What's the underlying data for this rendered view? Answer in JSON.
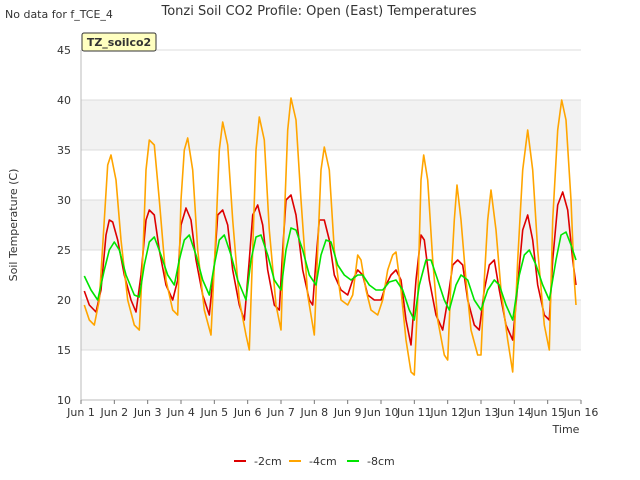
{
  "header": {
    "no_data_note": "No data for f_TCE_4"
  },
  "chart_data": {
    "type": "line",
    "title": "Tonzi Soil CO2 Profile: Open (East) Temperatures",
    "xlabel": "Time",
    "ylabel": "Soil Temperature (C)",
    "station_label": "TZ_soilco2",
    "xlim": [
      1,
      16
    ],
    "ylim": [
      10,
      45
    ],
    "x_ticks": [
      {
        "value": 1,
        "label": "Jun 1"
      },
      {
        "value": 2,
        "label": "Jun 2"
      },
      {
        "value": 3,
        "label": "Jun 3"
      },
      {
        "value": 4,
        "label": "Jun 4"
      },
      {
        "value": 5,
        "label": "Jun 5"
      },
      {
        "value": 6,
        "label": "Jun 6"
      },
      {
        "value": 7,
        "label": "Jun 7"
      },
      {
        "value": 8,
        "label": "Jun 8"
      },
      {
        "value": 9,
        "label": "Jun 9"
      },
      {
        "value": 10,
        "label": "Jun 10"
      },
      {
        "value": 11,
        "label": "Jun 11"
      },
      {
        "value": 12,
        "label": "Jun 12"
      },
      {
        "value": 13,
        "label": "Jun 13"
      },
      {
        "value": 14,
        "label": "Jun 14"
      },
      {
        "value": 15,
        "label": "Jun 15"
      },
      {
        "value": 16,
        "label": "Jun 16"
      }
    ],
    "y_ticks": [
      10,
      15,
      20,
      25,
      30,
      35,
      40,
      45
    ],
    "grid": true,
    "legend_position": "bottom-center",
    "series": [
      {
        "name": "-2cm",
        "color": "#dd0000",
        "points": [
          [
            1.1,
            20.9
          ],
          [
            1.25,
            19.5
          ],
          [
            1.45,
            18.8
          ],
          [
            1.6,
            21.0
          ],
          [
            1.75,
            26.5
          ],
          [
            1.85,
            28.0
          ],
          [
            1.95,
            27.8
          ],
          [
            2.1,
            26.0
          ],
          [
            2.3,
            22.5
          ],
          [
            2.5,
            20.0
          ],
          [
            2.65,
            18.8
          ],
          [
            2.8,
            22.5
          ],
          [
            2.95,
            28.0
          ],
          [
            3.05,
            29.0
          ],
          [
            3.2,
            28.5
          ],
          [
            3.35,
            25.0
          ],
          [
            3.55,
            21.5
          ],
          [
            3.75,
            20.0
          ],
          [
            3.9,
            22.0
          ],
          [
            4.0,
            27.5
          ],
          [
            4.15,
            29.2
          ],
          [
            4.3,
            28.0
          ],
          [
            4.45,
            24.0
          ],
          [
            4.65,
            20.5
          ],
          [
            4.85,
            18.5
          ],
          [
            5.0,
            23.5
          ],
          [
            5.1,
            28.5
          ],
          [
            5.25,
            29.0
          ],
          [
            5.4,
            27.5
          ],
          [
            5.55,
            23.0
          ],
          [
            5.75,
            19.5
          ],
          [
            5.9,
            18.0
          ],
          [
            6.05,
            24.0
          ],
          [
            6.15,
            28.5
          ],
          [
            6.3,
            29.5
          ],
          [
            6.45,
            27.5
          ],
          [
            6.6,
            23.0
          ],
          [
            6.8,
            19.5
          ],
          [
            6.95,
            19.0
          ],
          [
            7.05,
            25.0
          ],
          [
            7.15,
            30.0
          ],
          [
            7.3,
            30.5
          ],
          [
            7.45,
            28.5
          ],
          [
            7.65,
            23.0
          ],
          [
            7.85,
            20.0
          ],
          [
            7.95,
            19.5
          ],
          [
            8.05,
            24.0
          ],
          [
            8.15,
            28.0
          ],
          [
            8.3,
            28.0
          ],
          [
            8.45,
            26.0
          ],
          [
            8.6,
            22.5
          ],
          [
            8.8,
            21.0
          ],
          [
            9.0,
            20.5
          ],
          [
            9.15,
            22.0
          ],
          [
            9.3,
            23.0
          ],
          [
            9.45,
            22.5
          ],
          [
            9.6,
            20.5
          ],
          [
            9.8,
            20.0
          ],
          [
            10.0,
            20.0
          ],
          [
            10.15,
            21.5
          ],
          [
            10.3,
            22.5
          ],
          [
            10.45,
            23.0
          ],
          [
            10.6,
            22.0
          ],
          [
            10.75,
            18.0
          ],
          [
            10.9,
            15.5
          ],
          [
            11.05,
            22.0
          ],
          [
            11.2,
            26.5
          ],
          [
            11.3,
            26.0
          ],
          [
            11.45,
            22.0
          ],
          [
            11.65,
            18.5
          ],
          [
            11.85,
            17.0
          ],
          [
            12.0,
            20.0
          ],
          [
            12.15,
            23.5
          ],
          [
            12.3,
            24.0
          ],
          [
            12.45,
            23.5
          ],
          [
            12.6,
            20.0
          ],
          [
            12.8,
            17.5
          ],
          [
            12.95,
            17.0
          ],
          [
            13.1,
            21.0
          ],
          [
            13.25,
            23.5
          ],
          [
            13.4,
            24.0
          ],
          [
            13.55,
            21.0
          ],
          [
            13.75,
            17.5
          ],
          [
            13.95,
            16.0
          ],
          [
            14.1,
            21.5
          ],
          [
            14.25,
            27.0
          ],
          [
            14.4,
            28.5
          ],
          [
            14.55,
            26.0
          ],
          [
            14.7,
            21.5
          ],
          [
            14.9,
            18.5
          ],
          [
            15.05,
            18.0
          ],
          [
            15.15,
            24.0
          ],
          [
            15.3,
            29.5
          ],
          [
            15.45,
            30.8
          ],
          [
            15.6,
            29.0
          ],
          [
            15.75,
            24.0
          ],
          [
            15.85,
            21.5
          ]
        ]
      },
      {
        "name": "-4cm",
        "color": "#ffa500",
        "points": [
          [
            1.1,
            19.5
          ],
          [
            1.25,
            18.0
          ],
          [
            1.4,
            17.5
          ],
          [
            1.55,
            20.0
          ],
          [
            1.7,
            28.0
          ],
          [
            1.8,
            33.5
          ],
          [
            1.9,
            34.5
          ],
          [
            2.05,
            32.0
          ],
          [
            2.2,
            26.0
          ],
          [
            2.4,
            20.0
          ],
          [
            2.6,
            17.5
          ],
          [
            2.75,
            17.0
          ],
          [
            2.85,
            24.0
          ],
          [
            2.95,
            33.0
          ],
          [
            3.05,
            36.0
          ],
          [
            3.2,
            35.5
          ],
          [
            3.35,
            30.0
          ],
          [
            3.55,
            22.0
          ],
          [
            3.75,
            19.0
          ],
          [
            3.9,
            18.5
          ],
          [
            4.0,
            30.0
          ],
          [
            4.1,
            35.0
          ],
          [
            4.2,
            36.2
          ],
          [
            4.35,
            33.0
          ],
          [
            4.5,
            25.0
          ],
          [
            4.7,
            19.0
          ],
          [
            4.9,
            16.5
          ],
          [
            5.05,
            27.0
          ],
          [
            5.15,
            35.0
          ],
          [
            5.25,
            37.8
          ],
          [
            5.4,
            35.5
          ],
          [
            5.55,
            28.0
          ],
          [
            5.75,
            20.0
          ],
          [
            5.95,
            16.5
          ],
          [
            6.05,
            15.0
          ],
          [
            6.15,
            25.0
          ],
          [
            6.25,
            35.0
          ],
          [
            6.35,
            38.3
          ],
          [
            6.5,
            36.0
          ],
          [
            6.65,
            27.0
          ],
          [
            6.85,
            19.5
          ],
          [
            7.0,
            17.0
          ],
          [
            7.1,
            28.0
          ],
          [
            7.2,
            37.0
          ],
          [
            7.3,
            40.2
          ],
          [
            7.45,
            38.0
          ],
          [
            7.6,
            30.0
          ],
          [
            7.8,
            20.5
          ],
          [
            8.0,
            16.5
          ],
          [
            8.1,
            25.0
          ],
          [
            8.2,
            33.0
          ],
          [
            8.3,
            35.3
          ],
          [
            8.45,
            33.0
          ],
          [
            8.6,
            25.0
          ],
          [
            8.8,
            20.0
          ],
          [
            9.0,
            19.5
          ],
          [
            9.15,
            20.5
          ],
          [
            9.3,
            24.5
          ],
          [
            9.4,
            24.0
          ],
          [
            9.55,
            21.0
          ],
          [
            9.7,
            19.0
          ],
          [
            9.9,
            18.5
          ],
          [
            10.05,
            20.0
          ],
          [
            10.2,
            23.0
          ],
          [
            10.35,
            24.5
          ],
          [
            10.45,
            24.8
          ],
          [
            10.6,
            21.0
          ],
          [
            10.75,
            16.0
          ],
          [
            10.9,
            12.8
          ],
          [
            11.0,
            12.5
          ],
          [
            11.1,
            20.0
          ],
          [
            11.2,
            32.0
          ],
          [
            11.28,
            34.5
          ],
          [
            11.4,
            32.0
          ],
          [
            11.55,
            24.0
          ],
          [
            11.7,
            18.0
          ],
          [
            11.9,
            14.5
          ],
          [
            12.0,
            14.0
          ],
          [
            12.1,
            22.0
          ],
          [
            12.2,
            28.0
          ],
          [
            12.28,
            31.5
          ],
          [
            12.4,
            28.0
          ],
          [
            12.55,
            22.0
          ],
          [
            12.7,
            17.0
          ],
          [
            12.9,
            14.5
          ],
          [
            13.0,
            14.5
          ],
          [
            13.1,
            22.0
          ],
          [
            13.2,
            28.0
          ],
          [
            13.3,
            31.0
          ],
          [
            13.45,
            27.0
          ],
          [
            13.6,
            21.0
          ],
          [
            13.8,
            16.0
          ],
          [
            13.95,
            12.8
          ],
          [
            14.1,
            24.0
          ],
          [
            14.25,
            33.0
          ],
          [
            14.4,
            37.0
          ],
          [
            14.55,
            33.0
          ],
          [
            14.7,
            25.0
          ],
          [
            14.9,
            17.5
          ],
          [
            15.05,
            15.0
          ],
          [
            15.15,
            28.0
          ],
          [
            15.3,
            37.0
          ],
          [
            15.42,
            40.0
          ],
          [
            15.55,
            38.0
          ],
          [
            15.7,
            30.0
          ],
          [
            15.8,
            22.0
          ],
          [
            15.85,
            19.5
          ]
        ]
      },
      {
        "name": "-8cm",
        "color": "#00e400",
        "points": [
          [
            1.1,
            22.4
          ],
          [
            1.3,
            21.0
          ],
          [
            1.5,
            20.0
          ],
          [
            1.7,
            23.0
          ],
          [
            1.85,
            25.0
          ],
          [
            2.0,
            25.8
          ],
          [
            2.15,
            25.0
          ],
          [
            2.35,
            22.5
          ],
          [
            2.6,
            20.5
          ],
          [
            2.75,
            20.3
          ],
          [
            2.9,
            23.5
          ],
          [
            3.05,
            25.8
          ],
          [
            3.2,
            26.3
          ],
          [
            3.4,
            24.5
          ],
          [
            3.6,
            22.5
          ],
          [
            3.8,
            21.5
          ],
          [
            3.95,
            24.0
          ],
          [
            4.1,
            26.0
          ],
          [
            4.25,
            26.5
          ],
          [
            4.45,
            24.5
          ],
          [
            4.65,
            22.0
          ],
          [
            4.85,
            20.5
          ],
          [
            5.0,
            23.5
          ],
          [
            5.15,
            26.0
          ],
          [
            5.3,
            26.5
          ],
          [
            5.5,
            24.5
          ],
          [
            5.7,
            22.0
          ],
          [
            5.95,
            20.0
          ],
          [
            6.1,
            24.0
          ],
          [
            6.25,
            26.3
          ],
          [
            6.4,
            26.5
          ],
          [
            6.6,
            24.5
          ],
          [
            6.8,
            22.0
          ],
          [
            7.0,
            21.0
          ],
          [
            7.15,
            25.0
          ],
          [
            7.3,
            27.2
          ],
          [
            7.45,
            27.0
          ],
          [
            7.65,
            25.0
          ],
          [
            7.85,
            22.5
          ],
          [
            8.05,
            21.5
          ],
          [
            8.2,
            24.5
          ],
          [
            8.35,
            26.0
          ],
          [
            8.5,
            25.8
          ],
          [
            8.7,
            23.5
          ],
          [
            8.9,
            22.5
          ],
          [
            9.1,
            22.0
          ],
          [
            9.3,
            22.5
          ],
          [
            9.45,
            22.5
          ],
          [
            9.65,
            21.5
          ],
          [
            9.85,
            21.0
          ],
          [
            10.05,
            21.0
          ],
          [
            10.25,
            21.8
          ],
          [
            10.45,
            22.0
          ],
          [
            10.65,
            21.0
          ],
          [
            10.85,
            19.0
          ],
          [
            11.0,
            18.0
          ],
          [
            11.15,
            21.5
          ],
          [
            11.35,
            24.0
          ],
          [
            11.5,
            24.0
          ],
          [
            11.7,
            22.0
          ],
          [
            11.9,
            20.0
          ],
          [
            12.05,
            19.0
          ],
          [
            12.25,
            21.5
          ],
          [
            12.4,
            22.5
          ],
          [
            12.6,
            22.0
          ],
          [
            12.8,
            20.0
          ],
          [
            13.0,
            19.0
          ],
          [
            13.2,
            21.0
          ],
          [
            13.4,
            22.0
          ],
          [
            13.55,
            21.5
          ],
          [
            13.75,
            19.5
          ],
          [
            13.95,
            18.0
          ],
          [
            14.15,
            22.5
          ],
          [
            14.3,
            24.5
          ],
          [
            14.45,
            25.0
          ],
          [
            14.65,
            23.5
          ],
          [
            14.85,
            21.5
          ],
          [
            15.05,
            20.0
          ],
          [
            15.25,
            24.0
          ],
          [
            15.4,
            26.5
          ],
          [
            15.55,
            26.8
          ],
          [
            15.7,
            25.5
          ],
          [
            15.85,
            24.0
          ]
        ]
      }
    ]
  }
}
